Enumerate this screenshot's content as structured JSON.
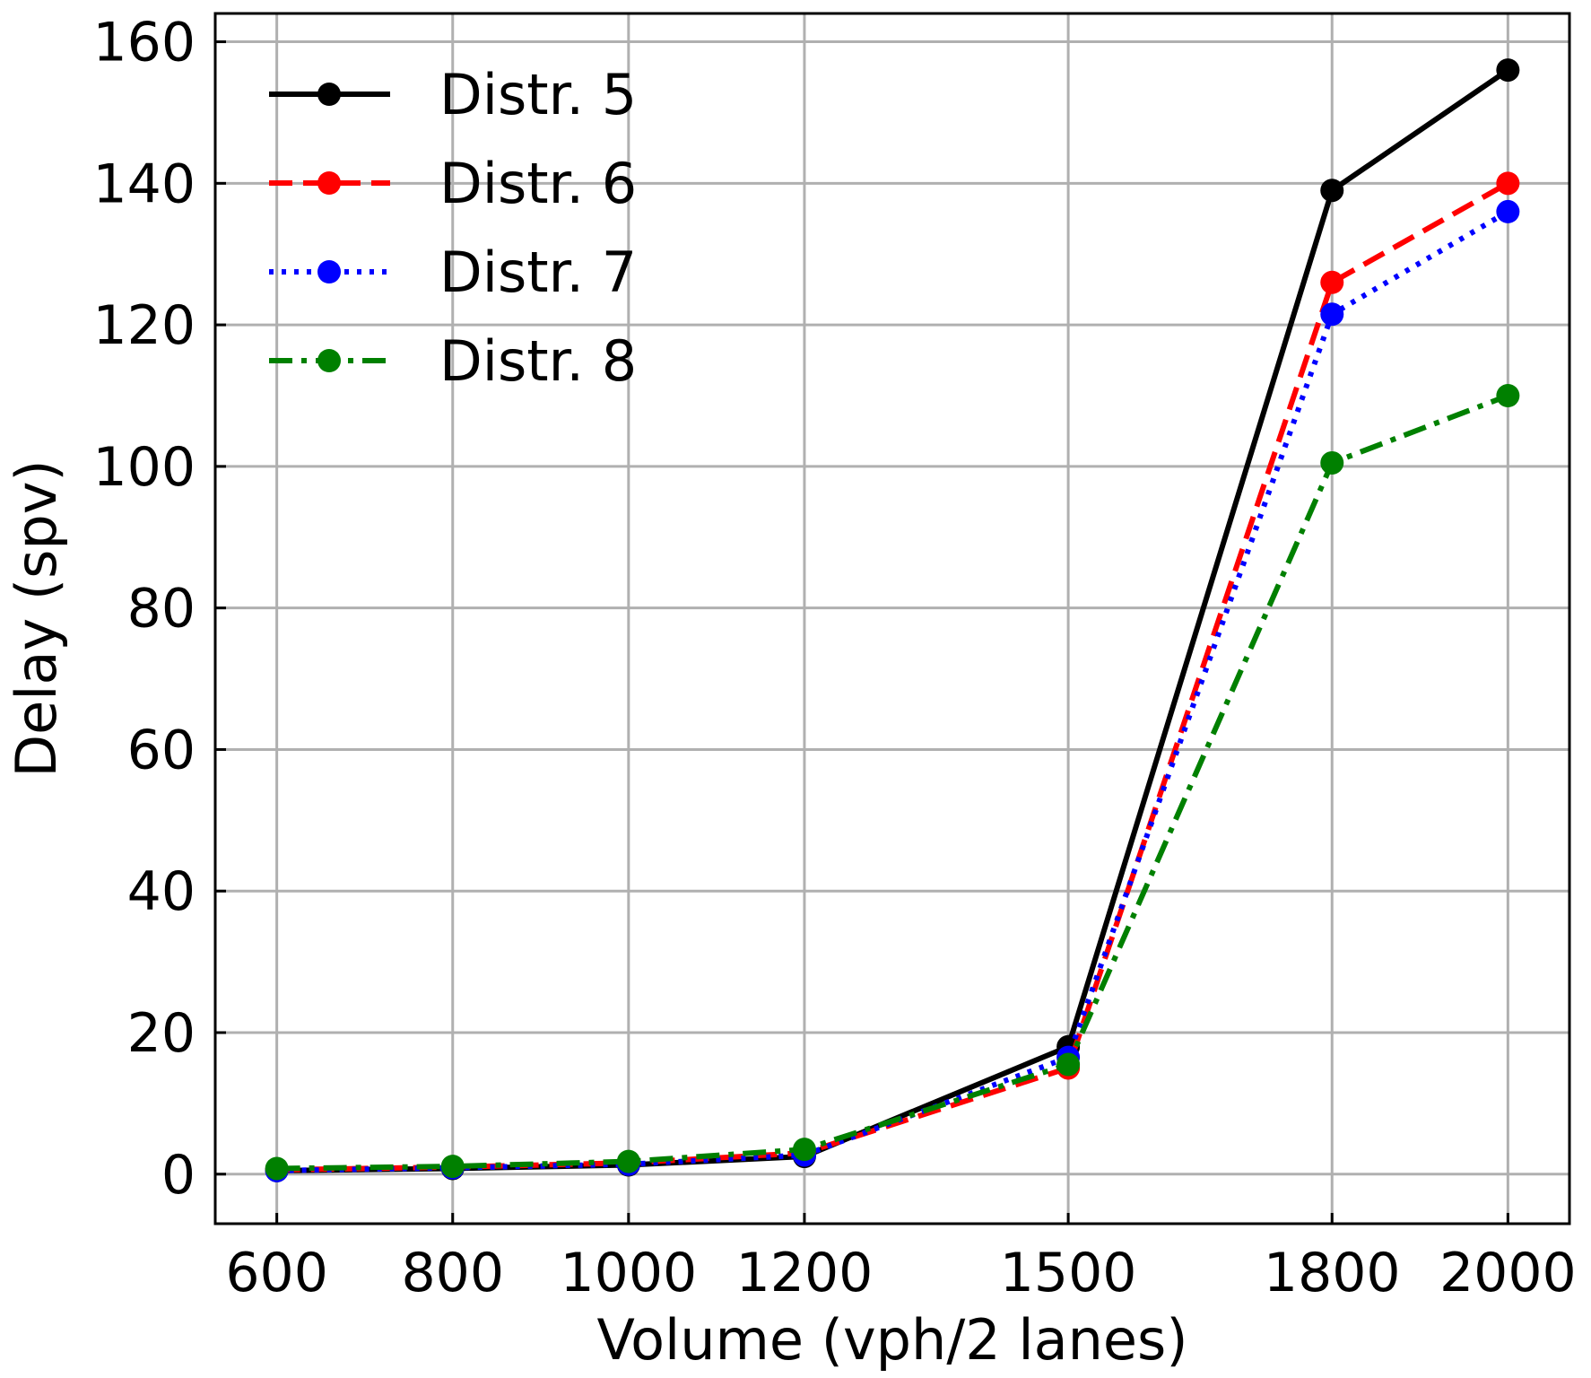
{
  "chart_data": {
    "type": "line",
    "title": "",
    "xlabel": "Volume (vph/2 lanes)",
    "ylabel": "Delay (spv)",
    "x": [
      600,
      800,
      1000,
      1200,
      1500,
      1800,
      2000
    ],
    "xlim": [
      530,
      2070
    ],
    "ylim": [
      -7,
      164
    ],
    "xticks": [
      600,
      800,
      1000,
      1200,
      1500,
      1800,
      2000
    ],
    "yticks": [
      0,
      20,
      40,
      60,
      80,
      100,
      120,
      140,
      160
    ],
    "grid": true,
    "legend_position": "top-left",
    "series": [
      {
        "name": "Distr. 5",
        "color": "#000000",
        "dash": "solid",
        "values": [
          0.5,
          0.8,
          1.3,
          2.5,
          18,
          139,
          156
        ]
      },
      {
        "name": "Distr. 6",
        "color": "#ff0000",
        "dash": "dashed",
        "values": [
          0.6,
          1.0,
          1.6,
          3.0,
          15,
          126,
          140
        ]
      },
      {
        "name": "Distr. 7",
        "color": "#0000ff",
        "dash": "dotted",
        "values": [
          0.5,
          0.9,
          1.4,
          2.7,
          16.5,
          121.5,
          136
        ]
      },
      {
        "name": "Distr. 8",
        "color": "#008000",
        "dash": "dashdot",
        "values": [
          0.8,
          1.1,
          1.8,
          3.5,
          15.5,
          100.5,
          110
        ]
      }
    ]
  }
}
